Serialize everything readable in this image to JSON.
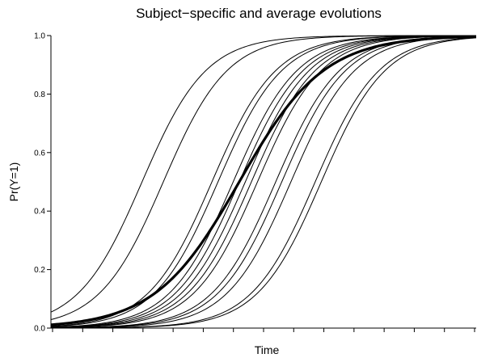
{
  "chart_data": {
    "type": "line",
    "title": "Subject−specific  and  average  evolutions",
    "xlabel": "Time",
    "ylabel": "Pr(Y=1)",
    "ylim": [
      0,
      1
    ],
    "yticks": [
      "0.0",
      "0.2",
      "0.4",
      "0.6",
      "0.8",
      "1.0"
    ],
    "x_tick_count": 15,
    "x_tick_labels": [],
    "grid": false,
    "legend": "none",
    "curve_model": "logistic",
    "line_color": "#000000",
    "x_range": [
      0,
      14
    ],
    "subject_curves": [
      {
        "midpoint": 3.0,
        "slope": 0.95
      },
      {
        "midpoint": 3.7,
        "slope": 0.95
      },
      {
        "midpoint": 5.3,
        "slope": 0.95
      },
      {
        "midpoint": 5.5,
        "slope": 0.95
      },
      {
        "midpoint": 6.0,
        "slope": 0.95
      },
      {
        "midpoint": 6.2,
        "slope": 0.95
      },
      {
        "midpoint": 6.4,
        "slope": 0.95
      },
      {
        "midpoint": 6.6,
        "slope": 0.95
      },
      {
        "midpoint": 6.8,
        "slope": 0.95
      },
      {
        "midpoint": 7.4,
        "slope": 0.95
      },
      {
        "midpoint": 7.6,
        "slope": 0.95
      },
      {
        "midpoint": 7.9,
        "slope": 0.95
      },
      {
        "midpoint": 8.7,
        "slope": 0.95
      },
      {
        "midpoint": 8.9,
        "slope": 0.95
      }
    ],
    "average_curve": {
      "midpoint": 6.2,
      "slope": 0.72
    }
  }
}
